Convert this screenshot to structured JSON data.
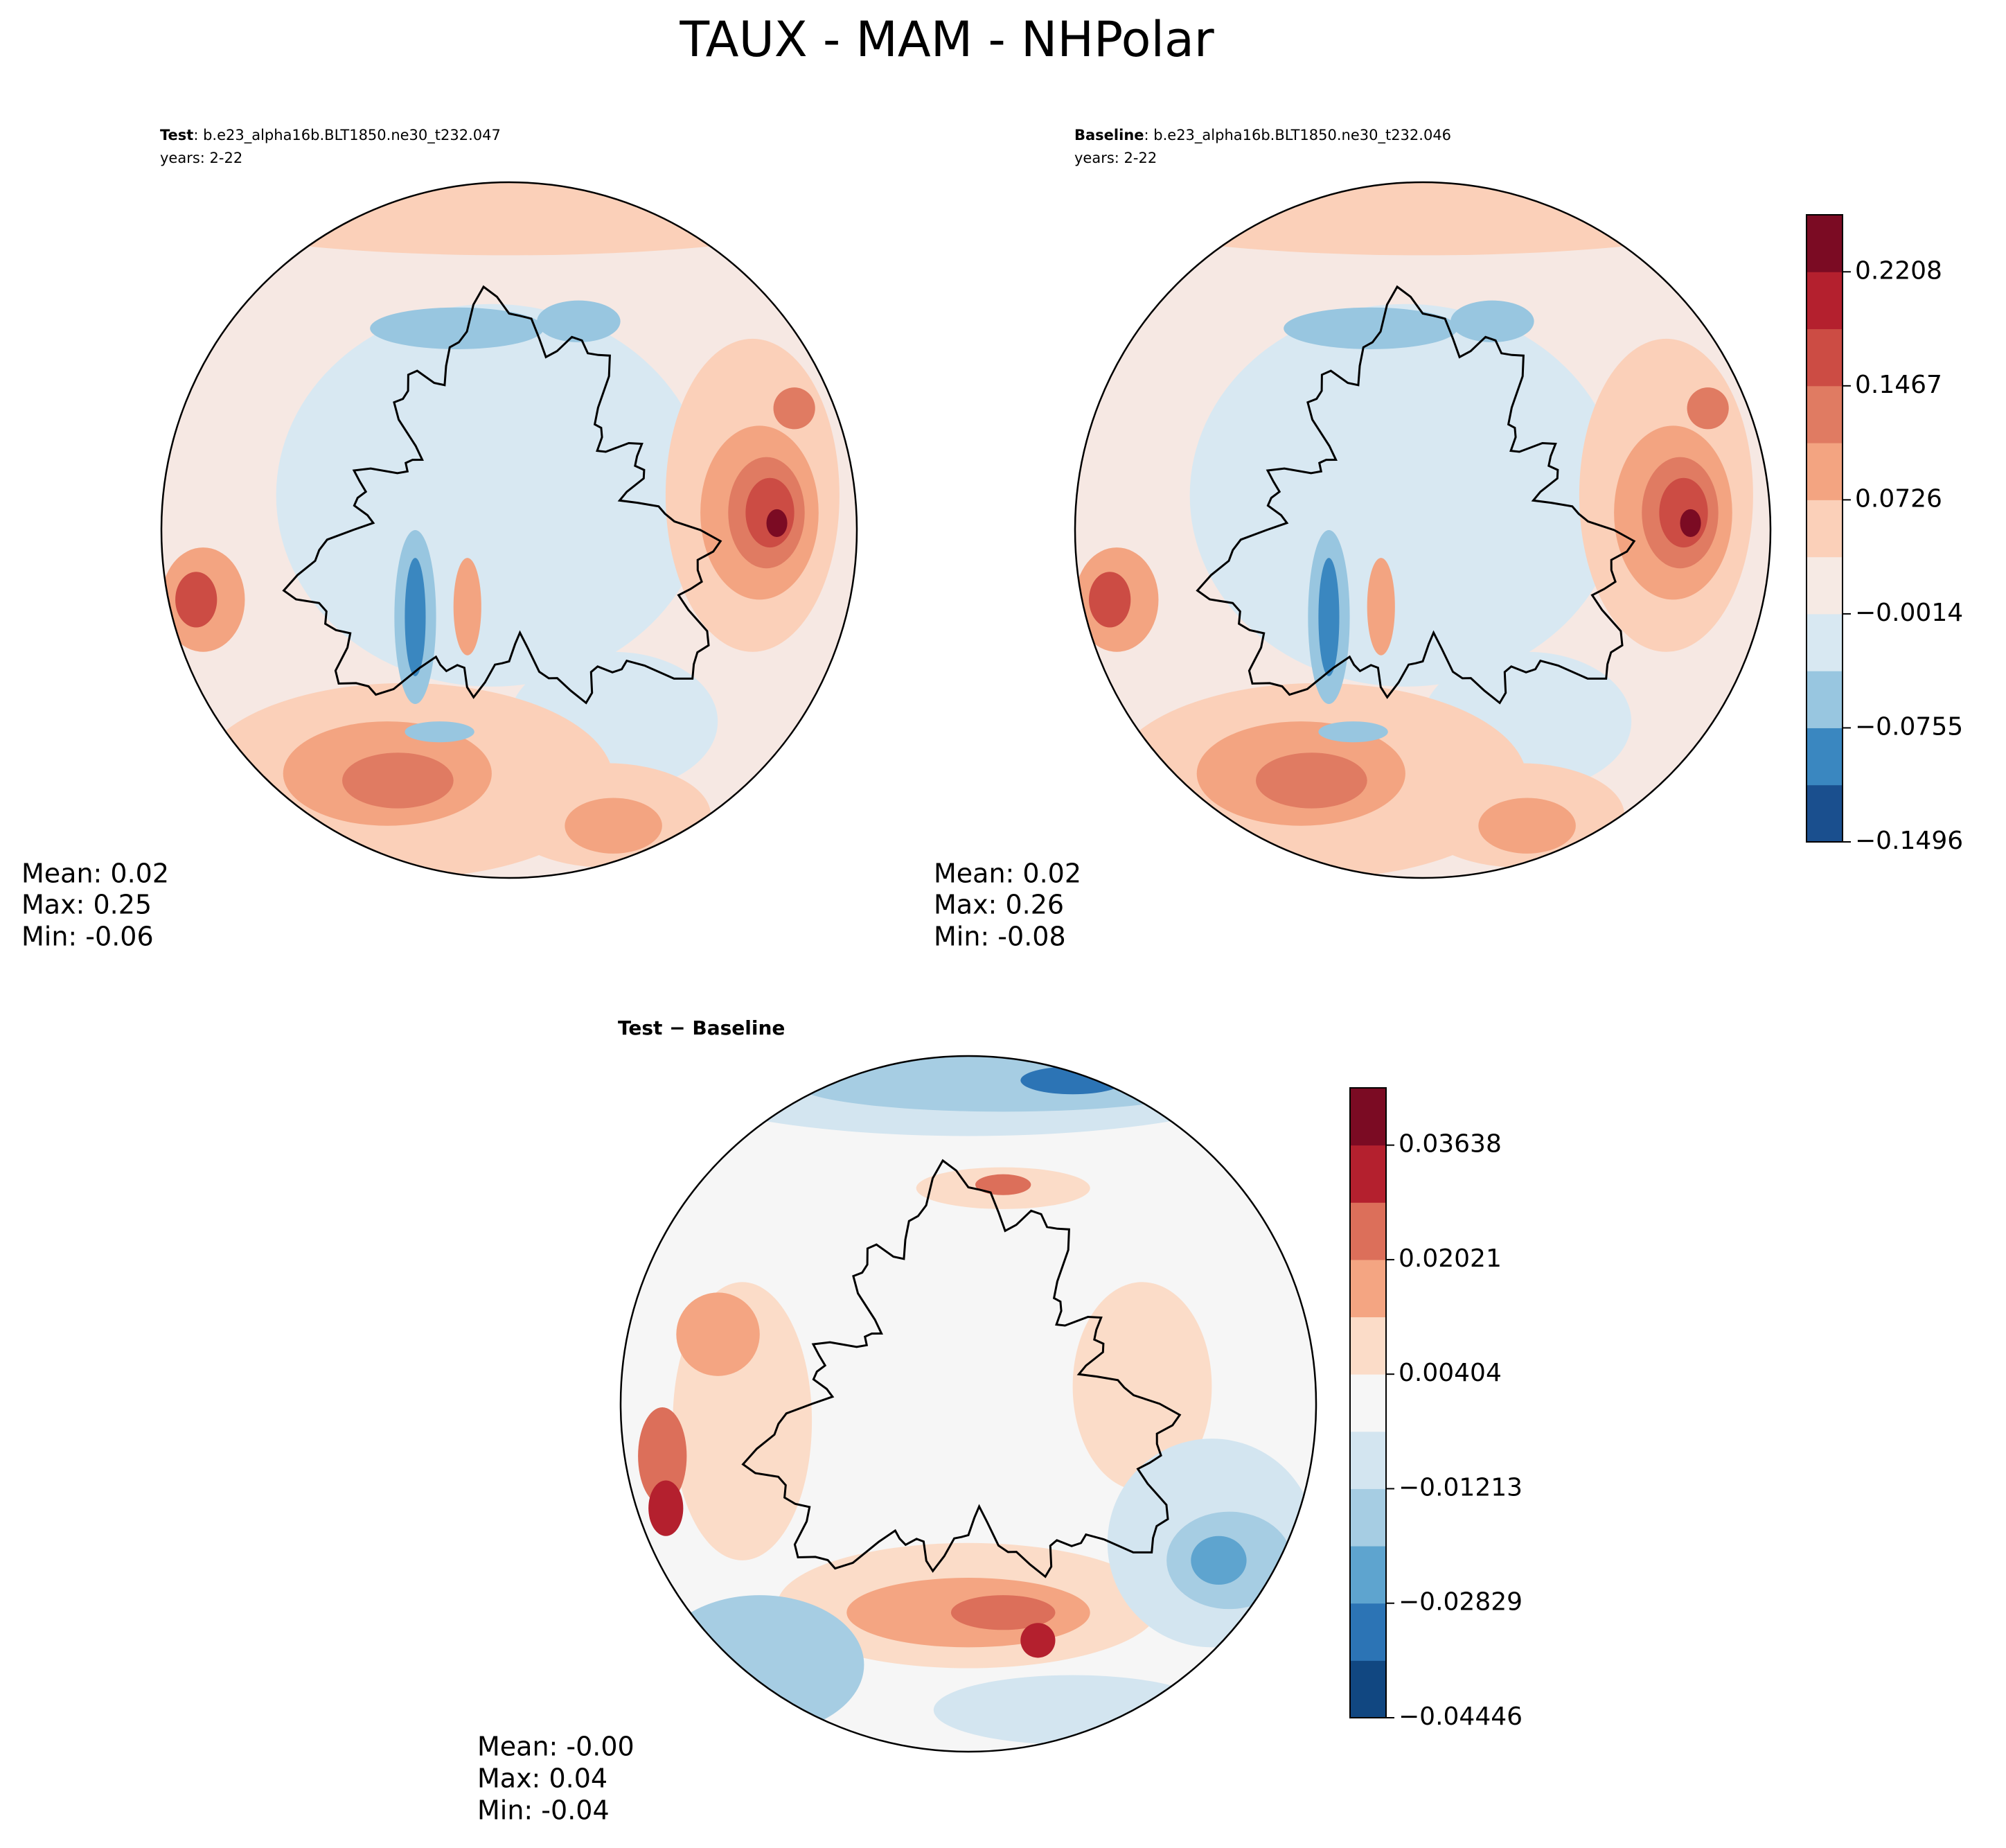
{
  "title": "TAUX - MAM - NHPolar",
  "panels": [
    {
      "label_bold": "Test",
      "label_rest": ": b.e23_alpha16b.BLT1850.ne30_t232.047",
      "years": "years: 2-22",
      "stats": [
        "Mean:  0.02",
        "Max:  0.25",
        "Min: -0.06"
      ]
    },
    {
      "label_bold": "Baseline",
      "label_rest": ": b.e23_alpha16b.BLT1850.ne30_t232.046",
      "years": "years: 2-22",
      "stats": [
        "Mean:  0.02",
        "Max:  0.26",
        "Min: -0.08"
      ]
    },
    {
      "label": "Test − Baseline",
      "stats": [
        "Mean: -0.00",
        "Max:  0.04",
        "Min: -0.04"
      ]
    }
  ],
  "colorbars": [
    {
      "ticks": [
        "−0.1496",
        "−0.0755",
        "−0.0014",
        "0.0726",
        "0.1467",
        "0.2208"
      ]
    },
    {
      "ticks": [
        "−0.04446",
        "−0.02829",
        "−0.01213",
        "0.00404",
        "0.02021",
        "0.03638"
      ]
    }
  ]
}
